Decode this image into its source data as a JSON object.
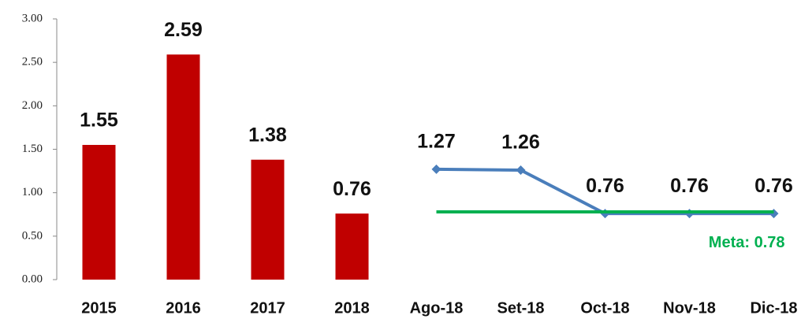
{
  "chart_data": {
    "type": "bar_line",
    "categories": [
      "2015",
      "2016",
      "2017",
      "2018",
      "Ago-18",
      "Set-18",
      "Oct-18",
      "Nov-18",
      "Dic-18"
    ],
    "series": [
      {
        "type": "bar",
        "color": "#c00000",
        "values": [
          1.55,
          2.59,
          1.38,
          0.76,
          null,
          null,
          null,
          null,
          null
        ]
      },
      {
        "type": "line",
        "color": "#4a7ebb",
        "values": [
          null,
          null,
          null,
          null,
          1.27,
          1.26,
          0.76,
          0.76,
          0.76
        ]
      }
    ],
    "reference_line": {
      "value": 0.78,
      "label": "Meta: 0.78",
      "color": "#00b050"
    },
    "ylim": [
      0,
      3
    ],
    "yticks": [
      {
        "value": 0,
        "label": "0.00"
      },
      {
        "value": 0.5,
        "label": "0.50"
      },
      {
        "value": 1,
        "label": "1.00"
      },
      {
        "value": 1.5,
        "label": "1.50"
      },
      {
        "value": 2,
        "label": "2.00"
      },
      {
        "value": 2.5,
        "label": "2.50"
      },
      {
        "value": 3,
        "label": "3.00"
      }
    ],
    "grid": false
  }
}
